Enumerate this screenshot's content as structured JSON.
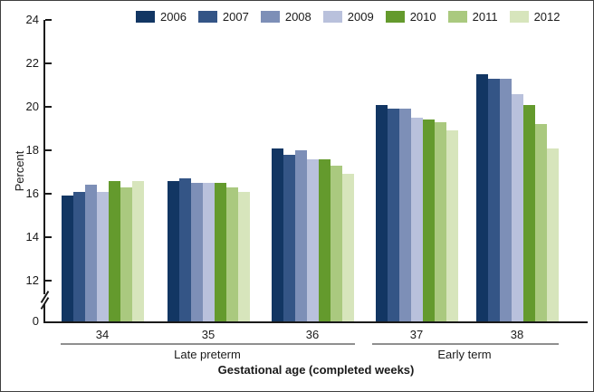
{
  "chart_data": {
    "type": "bar",
    "title": "",
    "ylabel": "Percent",
    "xlabel": "Gestational age (completed weeks)",
    "categories": [
      "34",
      "35",
      "36",
      "37",
      "38"
    ],
    "category_groups": [
      {
        "label": "Late preterm",
        "categories": [
          "34",
          "35",
          "36"
        ]
      },
      {
        "label": "Early term",
        "categories": [
          "37",
          "38"
        ]
      }
    ],
    "series": [
      {
        "name": "2006",
        "color": "#123663",
        "values": [
          15.9,
          16.6,
          18.1,
          20.1,
          21.5
        ]
      },
      {
        "name": "2007",
        "color": "#345586",
        "values": [
          16.1,
          16.7,
          17.8,
          19.9,
          21.3
        ]
      },
      {
        "name": "2008",
        "color": "#7d8fb7",
        "values": [
          16.4,
          16.5,
          18.0,
          19.9,
          21.3
        ]
      },
      {
        "name": "2009",
        "color": "#b9c1dc",
        "values": [
          16.1,
          16.5,
          17.6,
          19.5,
          20.6
        ]
      },
      {
        "name": "2010",
        "color": "#649a2d",
        "values": [
          16.6,
          16.5,
          17.6,
          19.4,
          20.1
        ]
      },
      {
        "name": "2011",
        "color": "#aac97f",
        "values": [
          16.3,
          16.3,
          17.3,
          19.3,
          19.2
        ]
      },
      {
        "name": "2012",
        "color": "#d7e5bc",
        "values": [
          16.6,
          16.1,
          16.9,
          18.9,
          18.1
        ]
      }
    ],
    "y_ticks": [
      24,
      22,
      20,
      18,
      16,
      14,
      12
    ],
    "y_zero_label": "0",
    "ylim_display": [
      12,
      24
    ],
    "axis_break": true,
    "grid": false,
    "legend_position": "top"
  }
}
